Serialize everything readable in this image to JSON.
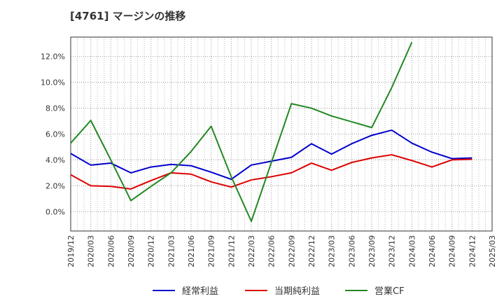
{
  "chart_data": {
    "type": "line",
    "title": "[4761]  マージンの推移",
    "xlabel": "",
    "ylabel": "",
    "ylim": [
      -1.5,
      13.5
    ],
    "grid": true,
    "legend_position": "bottom",
    "y_ticks": [
      "12.0%",
      "10.0%",
      "8.0%",
      "6.0%",
      "4.0%",
      "2.0%",
      "0.0%"
    ],
    "y_tick_values": [
      12,
      10,
      8,
      6,
      4,
      2,
      0
    ],
    "x_ticks": [
      "2019/12",
      "2020/03",
      "2020/06",
      "2020/09",
      "2020/12",
      "2021/03",
      "2021/06",
      "2021/09",
      "2021/12",
      "2022/03",
      "2022/06",
      "2022/09",
      "2022/12",
      "2023/03",
      "2023/06",
      "2023/09",
      "2023/12",
      "2024/03",
      "2024/06",
      "2024/09",
      "2024/12",
      "2025/03"
    ],
    "series": [
      {
        "name": "経常利益",
        "color": "#0000cc",
        "values": [
          4.5,
          3.6,
          3.75,
          3.0,
          3.45,
          3.65,
          3.55,
          3.05,
          2.5,
          3.6,
          3.9,
          4.2,
          5.25,
          4.45,
          5.25,
          5.9,
          6.3,
          5.3,
          4.6,
          4.1,
          4.15,
          null
        ]
      },
      {
        "name": "当期純利益",
        "color": "#dd0000",
        "values": [
          2.85,
          2.0,
          1.95,
          1.75,
          2.4,
          3.0,
          2.9,
          2.3,
          1.9,
          2.45,
          2.7,
          3.0,
          3.75,
          3.2,
          3.8,
          4.15,
          4.4,
          3.95,
          3.45,
          4.0,
          4.05,
          null
        ]
      },
      {
        "name": "営業CF",
        "color": "#228822",
        "values": [
          5.3,
          7.05,
          4.0,
          0.85,
          1.95,
          3.0,
          4.65,
          6.6,
          2.7,
          -0.75,
          3.8,
          8.35,
          8.0,
          7.4,
          6.95,
          6.5,
          9.6,
          13.1,
          null,
          null,
          null,
          null
        ]
      }
    ]
  }
}
